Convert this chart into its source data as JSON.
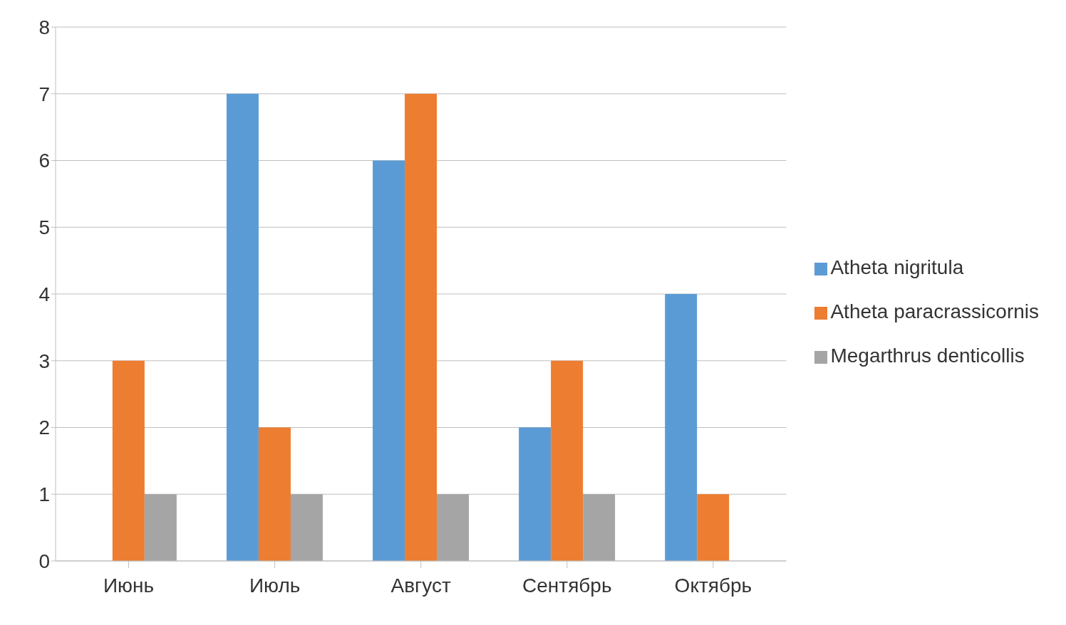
{
  "chart_data": {
    "type": "bar",
    "categories": [
      "Июнь",
      "Июль",
      "Август",
      "Сентябрь",
      "Октябрь"
    ],
    "series": [
      {
        "name": "Atheta nigritula",
        "color": "#5b9bd5",
        "values": [
          0,
          7,
          6,
          2,
          4
        ]
      },
      {
        "name": "Atheta paracrassicornis",
        "color": "#ed7d31",
        "values": [
          3,
          2,
          7,
          3,
          1
        ]
      },
      {
        "name": "Megarthrus denticollis",
        "color": "#a5a5a5",
        "values": [
          1,
          1,
          1,
          1,
          0
        ]
      }
    ],
    "ylim": [
      0,
      8
    ],
    "yticks": [
      0,
      1,
      2,
      3,
      4,
      5,
      6,
      7,
      8
    ],
    "grid": "y",
    "legend": "right"
  }
}
